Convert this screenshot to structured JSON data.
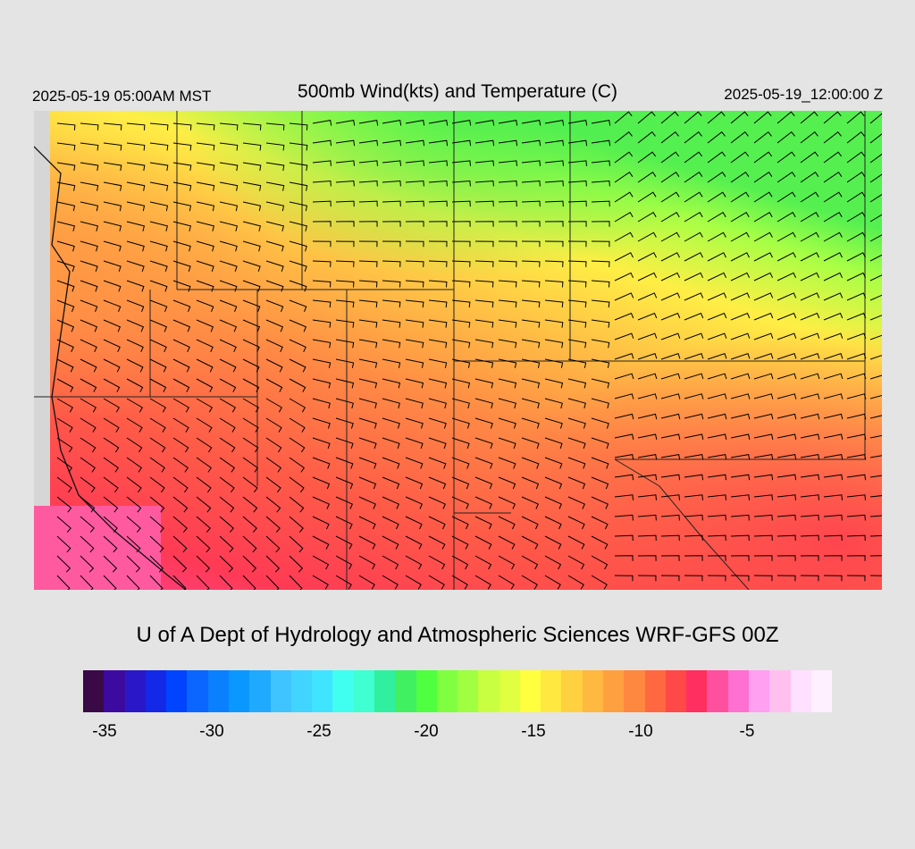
{
  "header": {
    "init_time": "2025-05-19 05:00AM MST",
    "title": "500mb Wind(kts) and Temperature (C)",
    "valid_time": "2025-05-19_12:00:00 Z"
  },
  "credit": "U of A Dept of Hydrology and Atmospheric Sciences WRF-GFS 00Z",
  "legend": {
    "colors": [
      "#3a0a46",
      "#3d0aa0",
      "#2a17c8",
      "#1428e8",
      "#0044ff",
      "#0a66ff",
      "#0a80ff",
      "#0a98ff",
      "#20aaff",
      "#40c4ff",
      "#40d4ff",
      "#40e4ff",
      "#40fff0",
      "#40ffd0",
      "#30f0a0",
      "#40f060",
      "#50ff40",
      "#80ff40",
      "#a0ff40",
      "#c8ff40",
      "#e0ff40",
      "#ffff40",
      "#ffe840",
      "#ffd040",
      "#ffb840",
      "#ffa040",
      "#ff8840",
      "#ff6840",
      "#ff4848",
      "#ff3060",
      "#ff50a0",
      "#ff70d0",
      "#ffa0f0",
      "#ffc0f0",
      "#ffe0ff",
      "#fff0ff"
    ],
    "tick_labels": [
      "-35",
      "-30",
      "-25",
      "-20",
      "-15",
      "-10",
      "-5"
    ]
  },
  "map": {
    "field": "500mb temperature",
    "wind_barbs": "500mb wind (kts)"
  }
}
